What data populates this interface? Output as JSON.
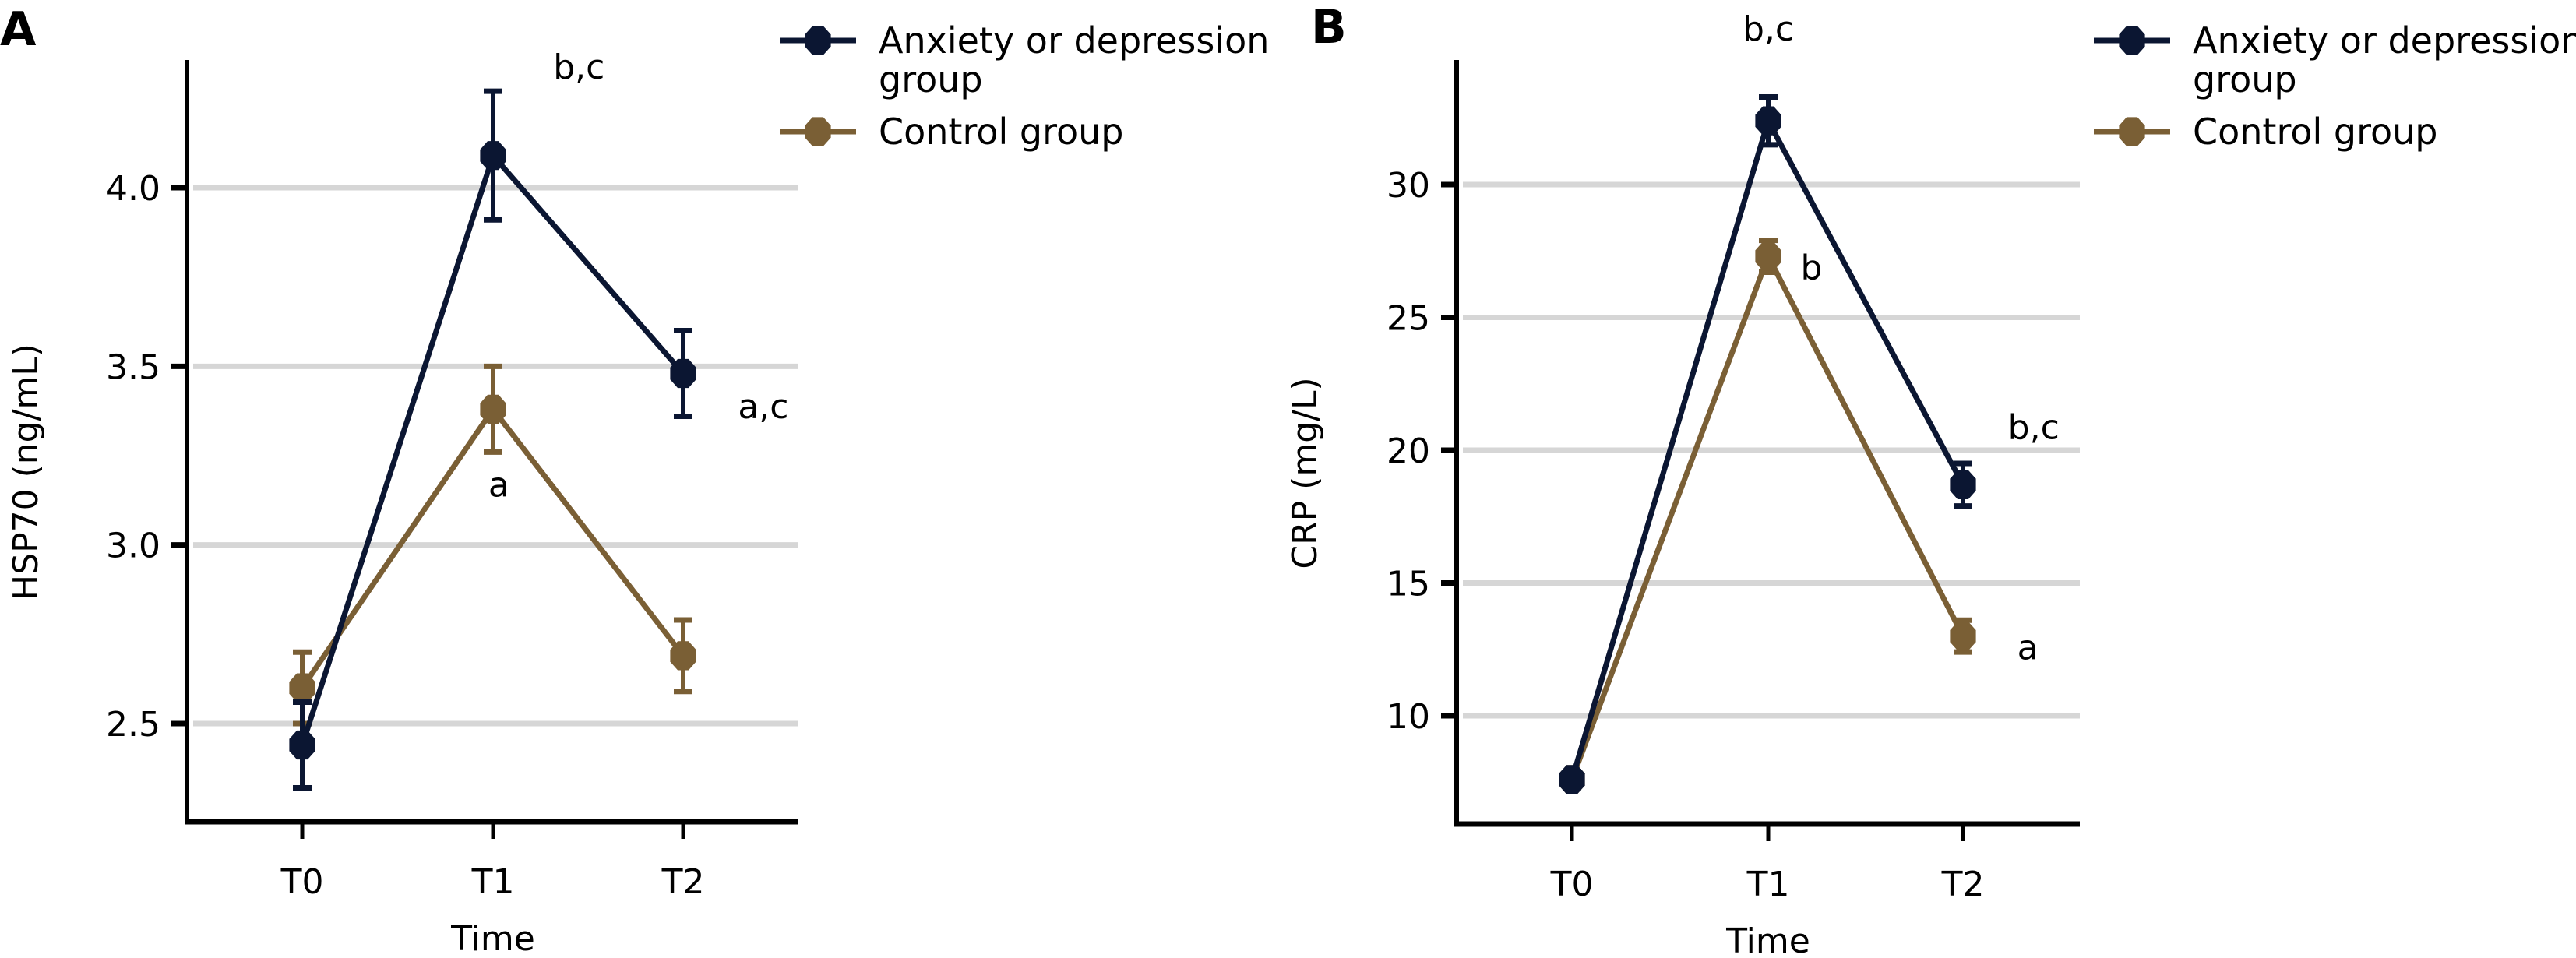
{
  "colors": {
    "anxiety": "#0b1632",
    "control": "#7a5f35",
    "grid": "#d6d6d6",
    "axis": "#000000"
  },
  "legend": {
    "items": [
      {
        "label_line1": "Anxiety or depression",
        "label_line2": "group",
        "series": "anxiety"
      },
      {
        "label_line1": "Control group",
        "label_line2": "",
        "series": "control"
      }
    ]
  },
  "chart_data": [
    {
      "panel": "A",
      "type": "line",
      "title": "",
      "xlabel": "Time",
      "ylabel": "HSP70 (ng/mL)",
      "categories": [
        "T0",
        "T1",
        "T2"
      ],
      "ylim": [
        2.2,
        4.4
      ],
      "yticks": [
        2.5,
        3.0,
        3.5,
        4.0
      ],
      "ytick_labels": [
        "2.5",
        "3.0",
        "3.5",
        "4.0"
      ],
      "grid": "horizontal",
      "legend_position": "right",
      "series": [
        {
          "name": "Anxiety or depression group",
          "key": "anxiety",
          "values": [
            2.44,
            4.09,
            3.48
          ],
          "errors": [
            0.12,
            0.18,
            0.12
          ]
        },
        {
          "name": "Control group",
          "key": "control",
          "values": [
            2.6,
            3.38,
            2.69
          ],
          "errors": [
            0.1,
            0.12,
            0.1
          ]
        }
      ],
      "annotations": [
        {
          "text": "b,c",
          "category": "T1",
          "y": 4.34,
          "dx": 0.45
        },
        {
          "text": "a",
          "category": "T1",
          "y": 3.17,
          "dx": 0.03
        },
        {
          "text": "a,c",
          "category": "T2",
          "y": 3.39,
          "dx": 0.42
        }
      ]
    },
    {
      "panel": "B",
      "type": "line",
      "title": "",
      "xlabel": "Time",
      "ylabel": "CRP (mg/L)",
      "categories": [
        "T0",
        "T1",
        "T2"
      ],
      "ylim": [
        5.3,
        35.3
      ],
      "yticks": [
        10,
        15,
        20,
        25,
        30
      ],
      "ytick_labels": [
        "10",
        "15",
        "20",
        "25",
        "30"
      ],
      "grid": "horizontal",
      "legend_position": "right",
      "series": [
        {
          "name": "Anxiety or depression group",
          "key": "anxiety",
          "values": [
            7.6,
            32.4,
            18.7
          ],
          "errors": [
            0.3,
            0.9,
            0.8
          ]
        },
        {
          "name": "Control group",
          "key": "control",
          "values": [
            7.6,
            27.3,
            13.0
          ],
          "errors": [
            0.3,
            0.6,
            0.6
          ]
        }
      ],
      "annotations": [
        {
          "text": "b,c",
          "category": "T1",
          "y": 35.9,
          "dx": 0.0
        },
        {
          "text": "b",
          "category": "T1",
          "y": 26.9,
          "dx": 0.22
        },
        {
          "text": "b,c",
          "category": "T2",
          "y": 20.9,
          "dx": 0.36
        },
        {
          "text": "a",
          "category": "T2",
          "y": 12.6,
          "dx": 0.33
        }
      ]
    }
  ]
}
